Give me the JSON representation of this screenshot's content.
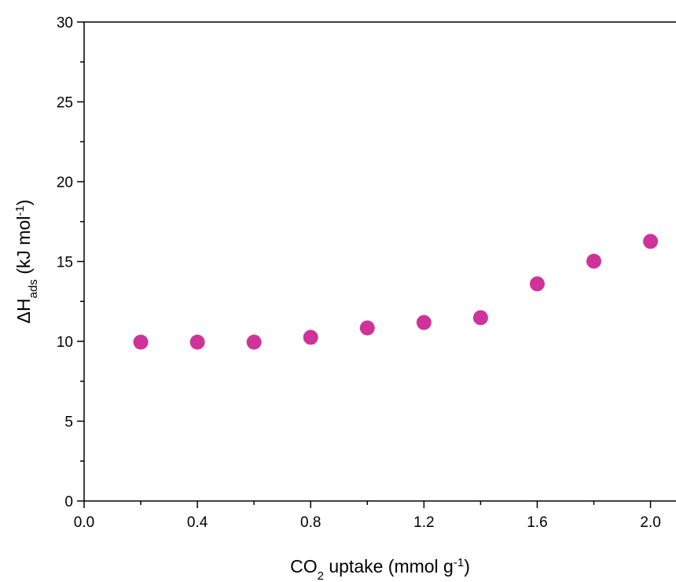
{
  "chart_data": {
    "type": "scatter",
    "xlabel": [
      {
        "text": "CO"
      },
      {
        "text": "2",
        "shift": "sub"
      },
      {
        "text": " uptake (mmol g"
      },
      {
        "text": "-1",
        "shift": "super"
      },
      {
        "text": ")"
      }
    ],
    "ylabel": [
      {
        "text": "ΔH"
      },
      {
        "text": "ads",
        "shift": "sub"
      },
      {
        "text": " (kJ mol"
      },
      {
        "text": "-1",
        "shift": "super"
      },
      {
        "text": ")"
      }
    ],
    "series": [
      {
        "color": "#cf3399",
        "x": [
          0.2,
          0.4,
          0.6,
          0.8,
          1.0,
          1.2,
          1.4,
          1.6,
          1.8,
          2.0
        ],
        "values": [
          9.95,
          9.95,
          9.95,
          10.25,
          10.84,
          11.18,
          11.48,
          13.6,
          15.02,
          16.26
        ]
      }
    ],
    "xlim": [
      0,
      2.09
    ],
    "ylim": [
      0,
      30
    ],
    "xticks": [
      {
        "value": 0,
        "label": "0.0"
      },
      0.4,
      0.8,
      1.2,
      1.6,
      {
        "value": 2,
        "label": "2.0"
      }
    ],
    "xminorticks": [
      0.2,
      0.6,
      1.0,
      1.4,
      1.8
    ],
    "yticks": [
      0,
      5,
      10,
      15,
      20,
      25,
      30
    ],
    "yminorticks": [
      2.5,
      7.5,
      12.5,
      17.5,
      22.5,
      27.5
    ]
  }
}
